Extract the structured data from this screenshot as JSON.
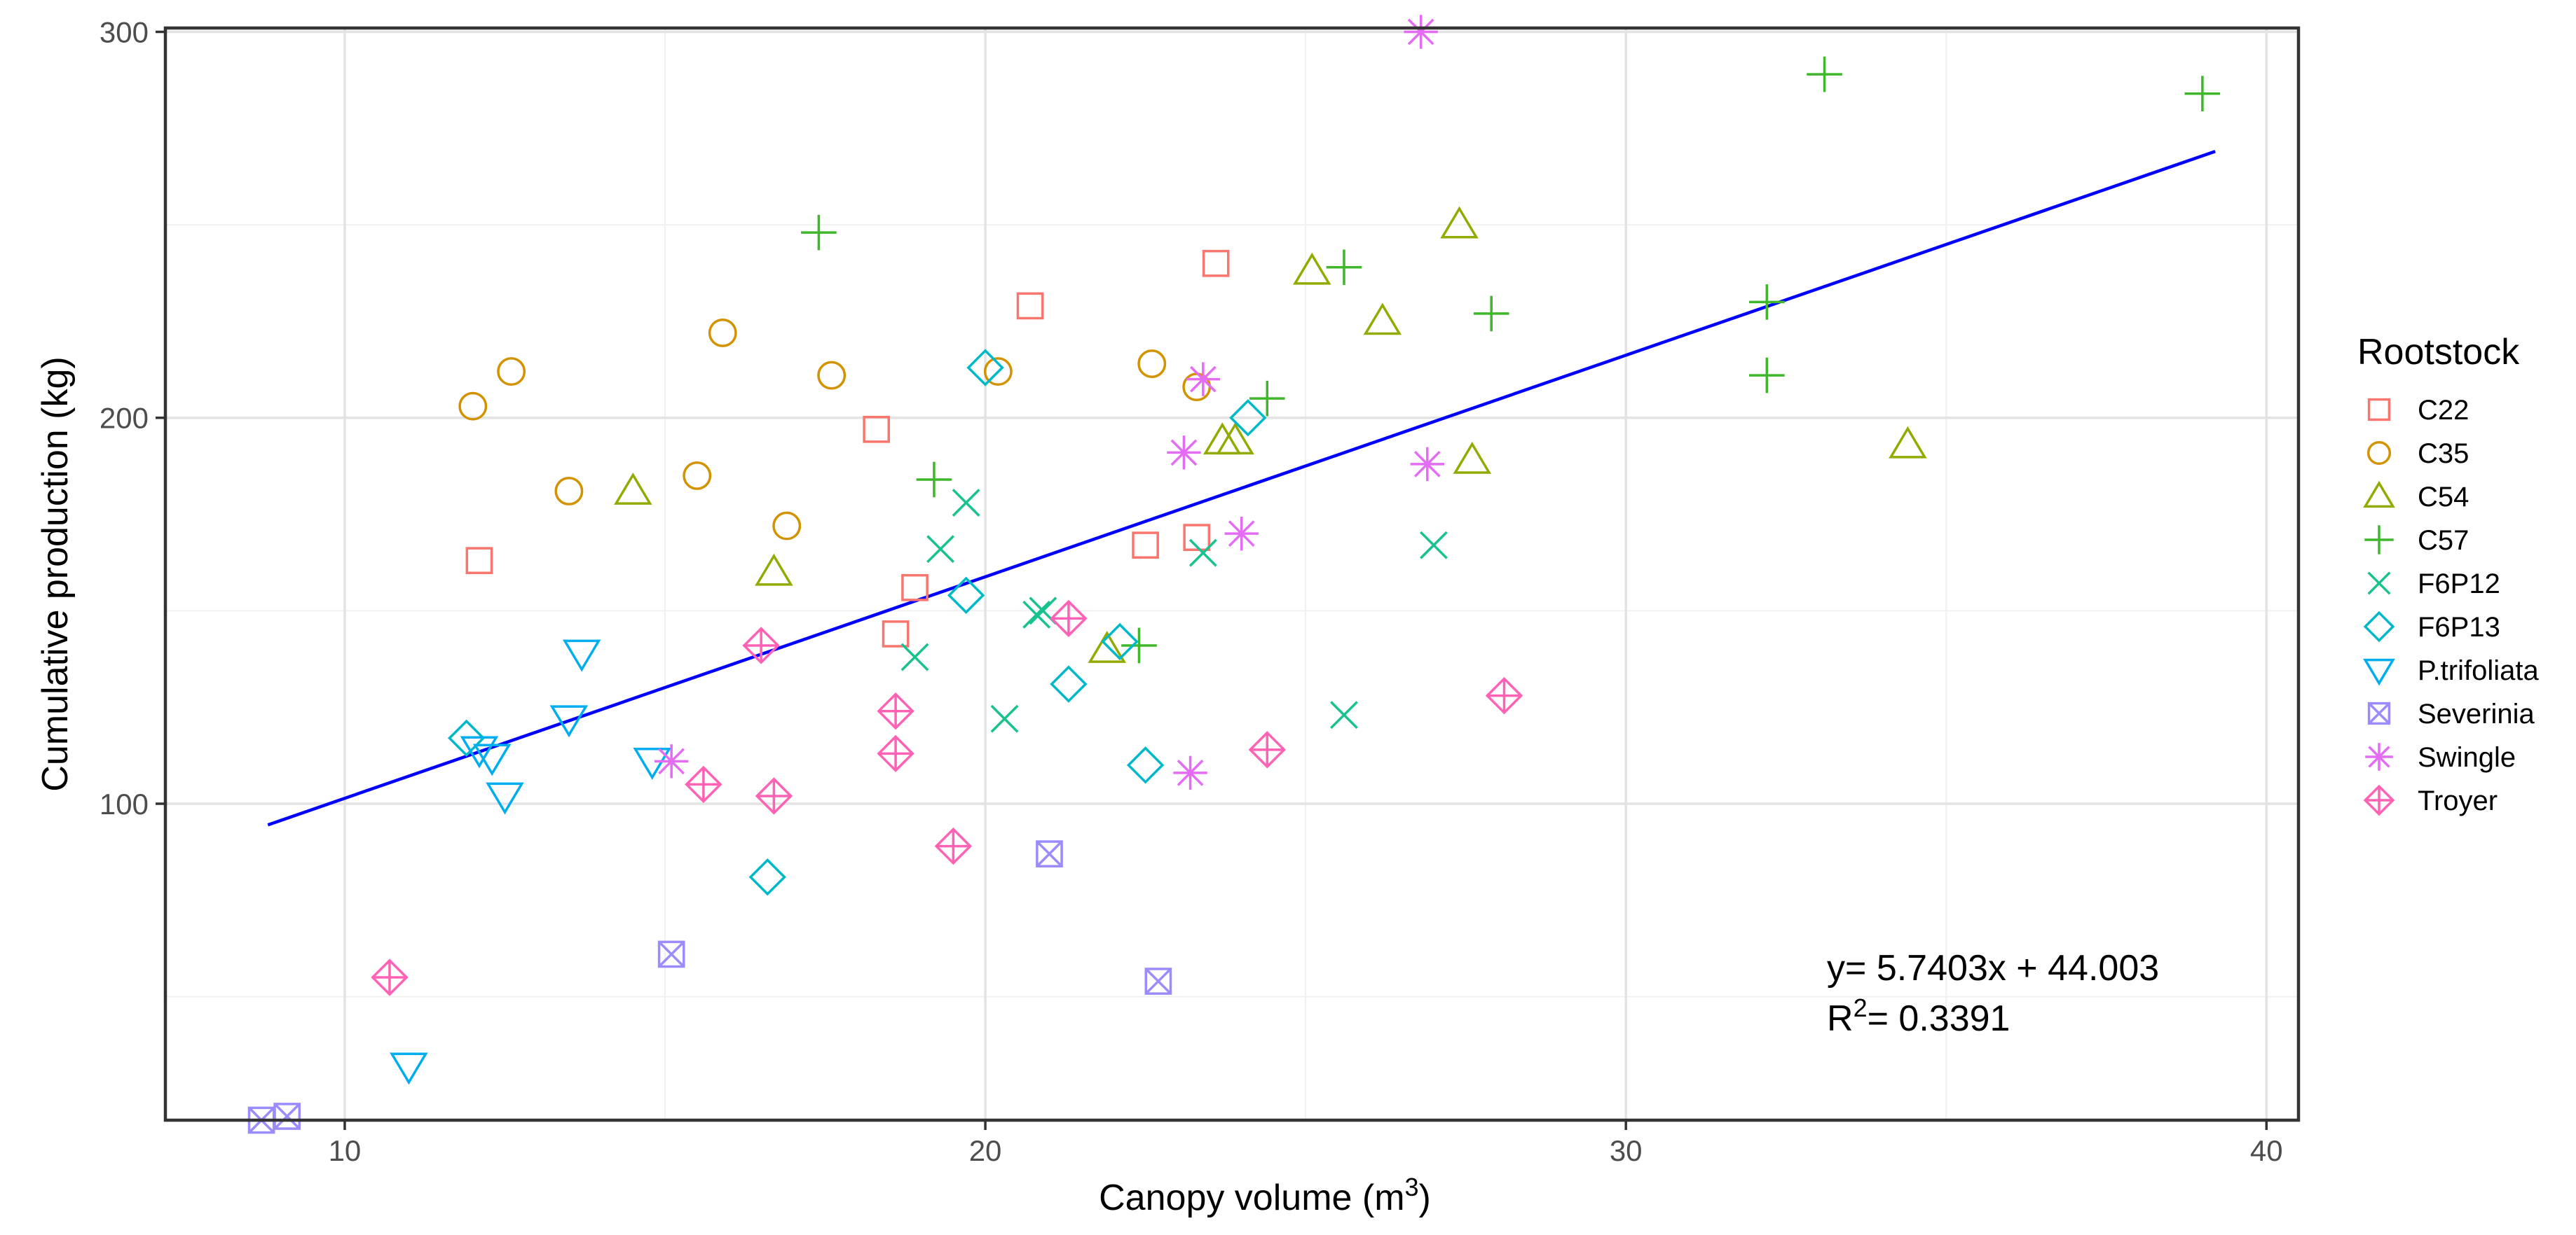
{
  "chart_data": {
    "type": "scatter",
    "title": "",
    "xlabel": "Canopy volume (m",
    "xlabel_sup": "3",
    "xlabel_end": ")",
    "ylabel": "Cumulative production (kg)",
    "xlim": [
      7.2,
      40.5
    ],
    "ylim": [
      18,
      301
    ],
    "xticks": [
      10,
      20,
      30,
      40
    ],
    "xtick_labels": [
      "10",
      "20",
      "30",
      "40"
    ],
    "yticks": [
      100,
      200,
      300
    ],
    "ytick_labels": [
      "100",
      "200",
      "300"
    ],
    "grid": true,
    "legend_title": "Rootstock",
    "legend_position": "right",
    "series": [
      {
        "name": "C22",
        "marker": "square",
        "color": "#F8766D",
        "points": [
          [
            12.1,
            163
          ],
          [
            18.3,
            197
          ],
          [
            18.6,
            144
          ],
          [
            18.9,
            156
          ],
          [
            20.7,
            229
          ],
          [
            22.5,
            167
          ],
          [
            23.3,
            169
          ],
          [
            23.6,
            240
          ]
        ]
      },
      {
        "name": "C35",
        "marker": "circle",
        "color": "#D39200",
        "points": [
          [
            12.0,
            203
          ],
          [
            12.6,
            212
          ],
          [
            13.5,
            181
          ],
          [
            15.5,
            185
          ],
          [
            15.9,
            222
          ],
          [
            16.9,
            172
          ],
          [
            17.6,
            211
          ],
          [
            20.2,
            212
          ],
          [
            22.6,
            214
          ],
          [
            23.3,
            208
          ]
        ]
      },
      {
        "name": "C54",
        "marker": "triangle",
        "color": "#93AA00",
        "points": [
          [
            14.5,
            181
          ],
          [
            16.7,
            160
          ],
          [
            21.9,
            140
          ],
          [
            23.7,
            194
          ],
          [
            23.9,
            194
          ],
          [
            25.1,
            238
          ],
          [
            26.2,
            225
          ],
          [
            27.4,
            250
          ],
          [
            27.6,
            189
          ],
          [
            34.4,
            193
          ]
        ]
      },
      {
        "name": "C57",
        "marker": "plus",
        "color": "#3EB72A",
        "points": [
          [
            17.4,
            248
          ],
          [
            19.2,
            184
          ],
          [
            22.4,
            141
          ],
          [
            24.4,
            205
          ],
          [
            25.6,
            239
          ],
          [
            27.9,
            227
          ],
          [
            32.2,
            230
          ],
          [
            32.2,
            211
          ],
          [
            33.1,
            289
          ],
          [
            39.0,
            284
          ]
        ]
      },
      {
        "name": "F6P12",
        "marker": "cross",
        "color": "#17C28E",
        "points": [
          [
            18.9,
            138
          ],
          [
            19.3,
            166
          ],
          [
            19.7,
            178
          ],
          [
            20.3,
            122
          ],
          [
            20.8,
            149
          ],
          [
            20.9,
            150
          ],
          [
            23.4,
            165
          ],
          [
            25.6,
            123
          ],
          [
            27.0,
            167
          ]
        ]
      },
      {
        "name": "F6P13",
        "marker": "diamond",
        "color": "#00B9C8",
        "points": [
          [
            11.9,
            117
          ],
          [
            16.6,
            81
          ],
          [
            19.7,
            154
          ],
          [
            20.0,
            213
          ],
          [
            21.3,
            131
          ],
          [
            22.1,
            142
          ],
          [
            22.5,
            110
          ],
          [
            24.1,
            200
          ]
        ]
      },
      {
        "name": "P.trifoliata",
        "marker": "triangle-down",
        "color": "#00ADEF",
        "points": [
          [
            12.1,
            114
          ],
          [
            12.3,
            112
          ],
          [
            12.5,
            102
          ],
          [
            11.0,
            32
          ],
          [
            13.5,
            122
          ],
          [
            13.7,
            139
          ],
          [
            14.8,
            111
          ]
        ]
      },
      {
        "name": "Severinia",
        "marker": "square-x",
        "color": "#9A8CFF",
        "points": [
          [
            8.7,
            18
          ],
          [
            9.1,
            19
          ],
          [
            15.1,
            61
          ],
          [
            21.0,
            87
          ],
          [
            22.7,
            54
          ]
        ]
      },
      {
        "name": "Swingle",
        "marker": "asterisk",
        "color": "#E46CF4",
        "points": [
          [
            15.1,
            111
          ],
          [
            23.1,
            191
          ],
          [
            23.2,
            108
          ],
          [
            23.4,
            210
          ],
          [
            24.0,
            170
          ],
          [
            26.8,
            300
          ],
          [
            26.9,
            188
          ]
        ]
      },
      {
        "name": "Troyer",
        "marker": "diamond-plus",
        "color": "#FF61B4",
        "points": [
          [
            10.7,
            55
          ],
          [
            15.6,
            105
          ],
          [
            16.5,
            141
          ],
          [
            16.7,
            102
          ],
          [
            18.6,
            113
          ],
          [
            18.6,
            124
          ],
          [
            19.5,
            89
          ],
          [
            21.3,
            148
          ],
          [
            24.4,
            114
          ],
          [
            28.1,
            128
          ]
        ]
      }
    ],
    "trendline": {
      "slope": 5.7403,
      "intercept": 44.003,
      "x_range": [
        8.8,
        39.2
      ],
      "color": "#0000FF"
    },
    "annotation_eq": "y= 5.7403x + 44.003",
    "annotation_r2_prefix": "R",
    "annotation_r2_sup": "2",
    "annotation_r2_value": "= 0.3391"
  }
}
